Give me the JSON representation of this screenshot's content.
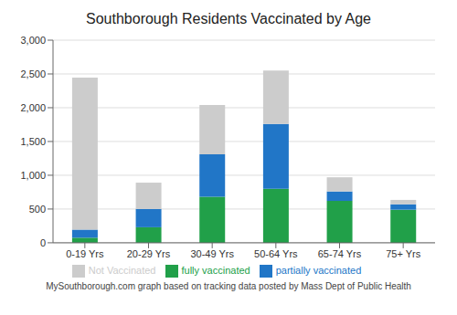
{
  "chart_data": {
    "type": "bar",
    "title": "Southborough Residents Vaccinated by Age",
    "footnote": "MySouthborough.com graph based on tracking data posted by Mass Dept of Public Health",
    "categories": [
      "0-19 Yrs",
      "20-29 Yrs",
      "30-49 Yrs",
      "50-64 Yrs",
      "65-74 Yrs",
      "75+ Yrs"
    ],
    "series": [
      {
        "name": "fully vaccinated",
        "color": "#21a049",
        "values": [
          75,
          230,
          680,
          800,
          620,
          490
        ]
      },
      {
        "name": "partially vaccinated",
        "color": "#2176c7",
        "values": [
          120,
          270,
          630,
          960,
          140,
          80
        ]
      },
      {
        "name": "Not Vaccinated",
        "color": "#cccccc",
        "values": [
          2250,
          390,
          730,
          790,
          210,
          65
        ]
      }
    ],
    "stacked": true,
    "ylim": [
      0,
      3000
    ],
    "yticks": [
      0,
      500,
      {
        "value": 1000,
        "label": "1,000"
      },
      {
        "value": 1500,
        "label": "1,500"
      },
      {
        "value": 2000,
        "label": "2,000"
      },
      {
        "value": 2500,
        "label": "2,500"
      },
      {
        "value": 3000,
        "label": "3,000"
      }
    ],
    "grid": true,
    "legend": "bottom"
  }
}
